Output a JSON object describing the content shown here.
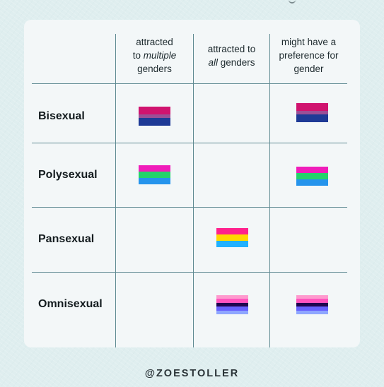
{
  "columns": [
    {
      "lines": [
        "attracted",
        "to ",
        "multiple",
        "genders"
      ]
    },
    {
      "lines": [
        "attracted to",
        "all",
        " genders"
      ]
    },
    {
      "lines": [
        "might have a",
        "preference for",
        "gender"
      ]
    }
  ],
  "rows": [
    {
      "label": "Bisexual"
    },
    {
      "label": "Polysexual"
    },
    {
      "label": "Pansexual"
    },
    {
      "label": "Omnisexual"
    }
  ],
  "flags": {
    "bisexual": {
      "stripes": [
        "#d0136f",
        "#9b4f96",
        "#1e3a96"
      ],
      "weights": [
        2,
        1,
        2
      ]
    },
    "polysexual": {
      "stripes": [
        "#f01dba",
        "#24d36b",
        "#2594ec"
      ],
      "weights": [
        1,
        1,
        1
      ]
    },
    "pansexual": {
      "stripes": [
        "#ff218c",
        "#ffd800",
        "#21b1ff"
      ],
      "weights": [
        1,
        1,
        1
      ]
    },
    "omnisexual": {
      "stripes": [
        "#fe9ace",
        "#ff53bf",
        "#20054f",
        "#6760fe",
        "#8ea6ff"
      ],
      "weights": [
        1,
        1,
        1,
        1,
        1
      ]
    }
  },
  "credit": "@ZOESTOLLER"
}
